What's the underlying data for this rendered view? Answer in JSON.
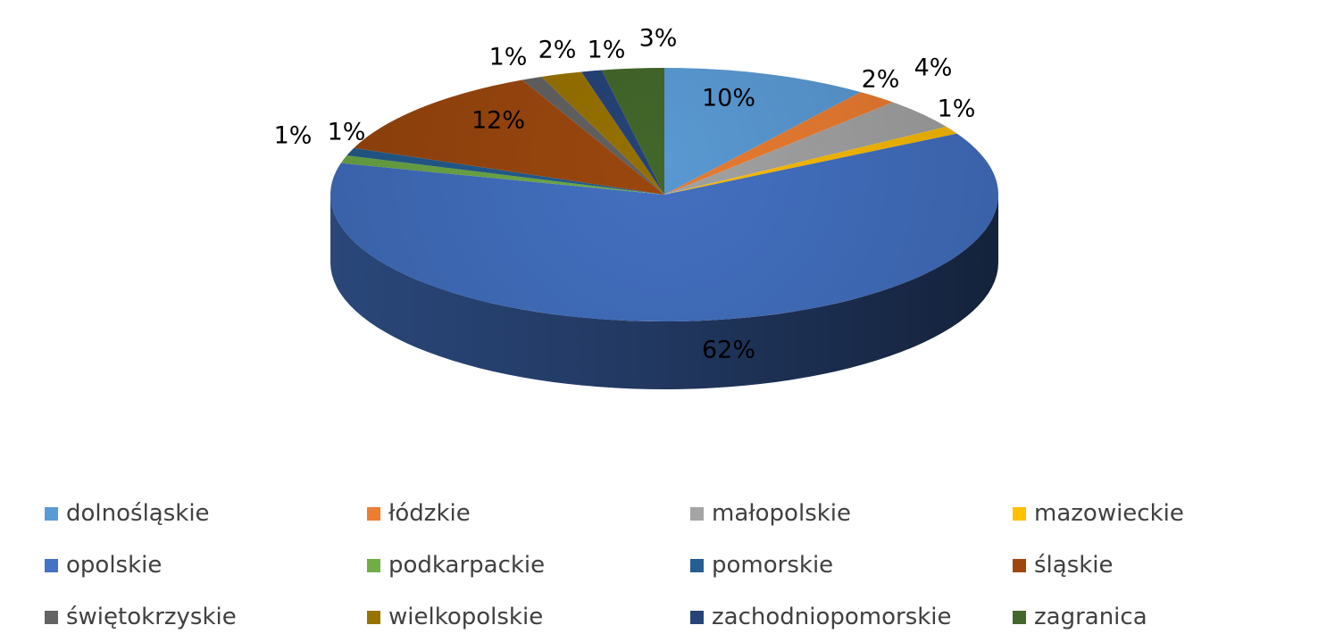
{
  "chart_data": {
    "type": "pie",
    "title": "",
    "slices": [
      {
        "name": "dolnośląskie",
        "value": 10,
        "label": "10%",
        "color": "#5B9BD5"
      },
      {
        "name": "łódzkie",
        "value": 2,
        "label": "2%",
        "color": "#ED7D31"
      },
      {
        "name": "małopolskie",
        "value": 4,
        "label": "4%",
        "color": "#A5A5A5"
      },
      {
        "name": "mazowieckie",
        "value": 1,
        "label": "1%",
        "color": "#FFC000"
      },
      {
        "name": "opolskie",
        "value": 62,
        "label": "62%",
        "color": "#4472C4"
      },
      {
        "name": "podkarpackie",
        "value": 1,
        "label": "1%",
        "color": "#70AD47"
      },
      {
        "name": "pomorskie",
        "value": 1,
        "label": "1%",
        "color": "#255E91"
      },
      {
        "name": "śląskie",
        "value": 12,
        "label": "12%",
        "color": "#9E480E"
      },
      {
        "name": "świętokrzyskie",
        "value": 1,
        "label": "1%",
        "color": "#636363"
      },
      {
        "name": "wielkopolskie",
        "value": 2,
        "label": "2%",
        "color": "#997300"
      },
      {
        "name": "zachodniopomorskie",
        "value": 1,
        "label": "1%",
        "color": "#264478"
      },
      {
        "name": "zagranica",
        "value": 3,
        "label": "3%",
        "color": "#43682B"
      }
    ],
    "legend_position": "bottom",
    "style": "3d"
  }
}
